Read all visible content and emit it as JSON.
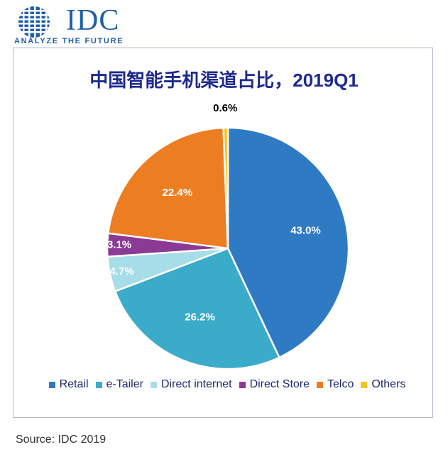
{
  "logo": {
    "wordmark": "IDC",
    "tagline": "ANALYZE THE FUTURE",
    "color": "#1f5fa8"
  },
  "chart_data": {
    "type": "pie",
    "title": "中国智能手机渠道占比，2019Q1",
    "categories": [
      "Retail",
      "e-Tailer",
      "Direct internet",
      "Direct Store",
      "Telco",
      "Others"
    ],
    "values": [
      43.0,
      26.2,
      4.7,
      3.1,
      22.4,
      0.6
    ],
    "labels": [
      "43.0%",
      "26.2%",
      "4.7%",
      "3.1%",
      "22.4%",
      "0.6%"
    ],
    "colors": [
      "#2e7bc4",
      "#3aabc8",
      "#a6dde8",
      "#8b3a96",
      "#ed7d21",
      "#f5c518"
    ],
    "label_colors": [
      "#ffffff",
      "#ffffff",
      "#ffffff",
      "#ffffff",
      "#ffffff",
      "#000000"
    ],
    "legend_position": "bottom"
  },
  "source": "Source: IDC 2019"
}
